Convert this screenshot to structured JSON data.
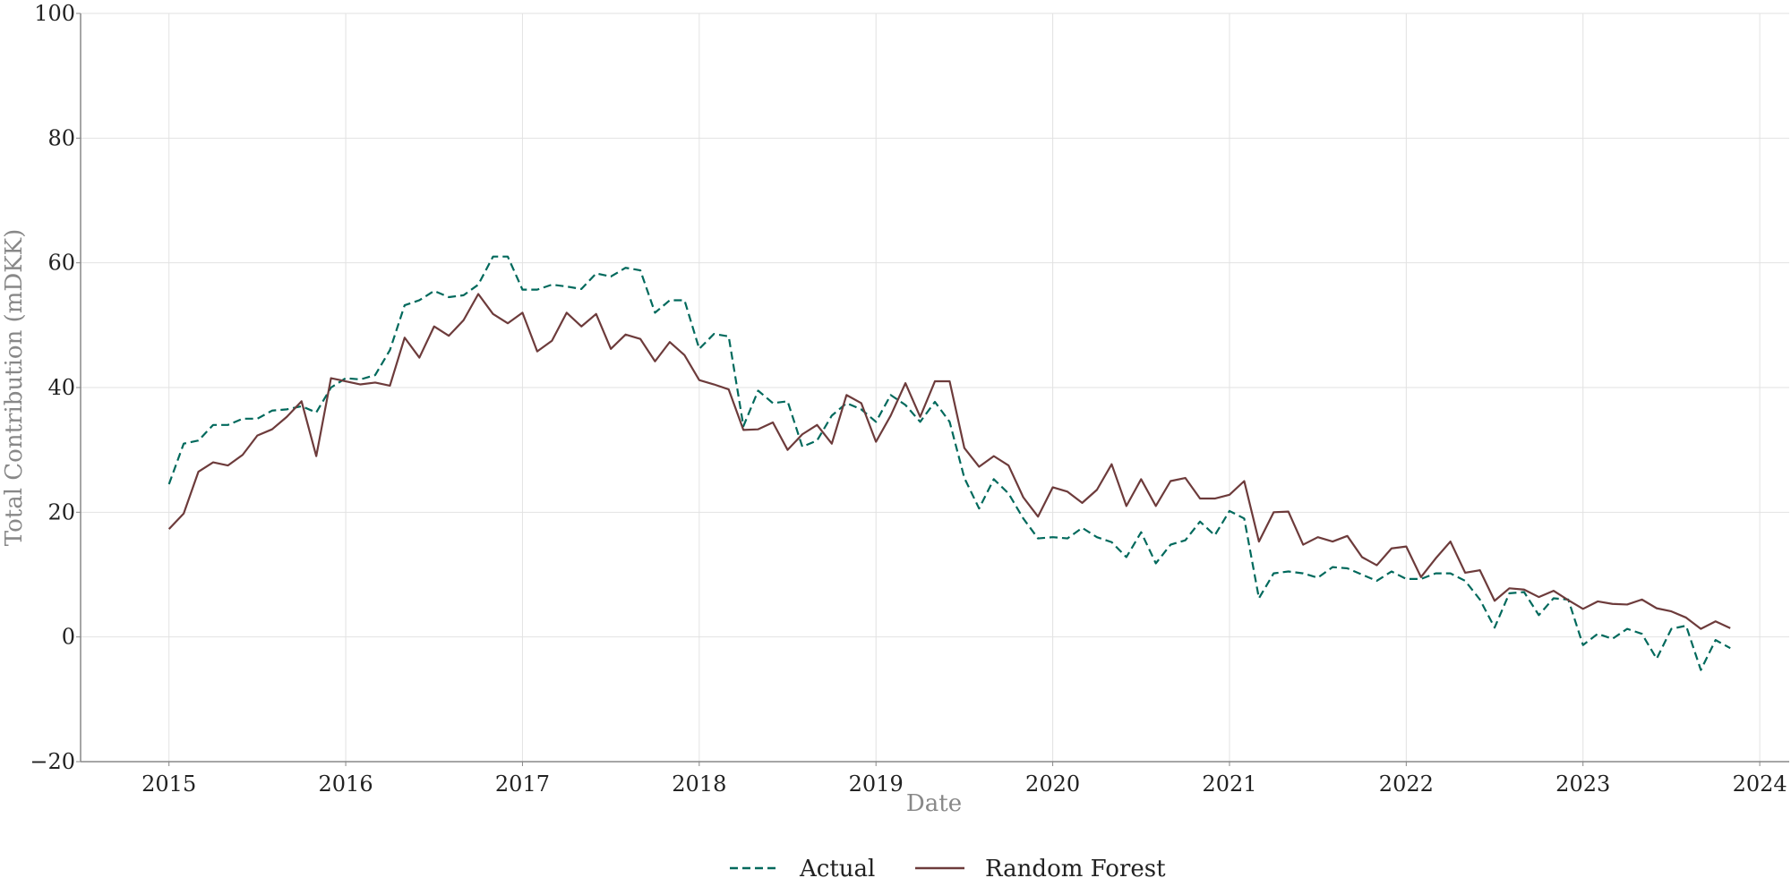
{
  "chart_data": {
    "type": "line",
    "title": "",
    "xlabel": "Date",
    "ylabel": "Total Contribution (mDKK)",
    "xlim": [
      "2014-07-01",
      "2024-03-01"
    ],
    "ylim": [
      -20,
      100
    ],
    "xticks": [
      "2015",
      "2016",
      "2017",
      "2018",
      "2019",
      "2020",
      "2021",
      "2022",
      "2023",
      "2024"
    ],
    "yticks": [
      -20,
      0,
      20,
      40,
      60,
      80,
      100
    ],
    "ytick_labels": [
      "−20",
      "0",
      "20",
      "40",
      "60",
      "80",
      "100"
    ],
    "grid": true,
    "legend_position": "bottom-center",
    "x_start": "2015-01",
    "x_frequency": "monthly",
    "series": [
      {
        "name": "Actual",
        "color": "#00695c",
        "dash": "dashed",
        "values": [
          24.5,
          31,
          31.5,
          34,
          34,
          35,
          35,
          36.3,
          36.5,
          37,
          36,
          40,
          41.5,
          41.3,
          42,
          46,
          53.2,
          54,
          55.5,
          54.5,
          54.8,
          56.5,
          61,
          61,
          55.7,
          55.7,
          56.5,
          56.2,
          55.8,
          58.3,
          57.8,
          59.2,
          58.8,
          52,
          54,
          54,
          46.2,
          48.6,
          48.2,
          33.8,
          39.5,
          37.5,
          37.8,
          30.5,
          31.5,
          35.5,
          37.5,
          36.5,
          34.5,
          38.8,
          37.2,
          34.5,
          37.7,
          34.5,
          25.5,
          20.6,
          25.3,
          23,
          19,
          15.8,
          16,
          15.8,
          17.5,
          16,
          15.2,
          12.8,
          16.8,
          11.8,
          14.8,
          15.5,
          18.5,
          16.3,
          20.2,
          19,
          6.2,
          10.2,
          10.5,
          10.2,
          9.5,
          11.2,
          11,
          10,
          9,
          10.5,
          9.3,
          9.3,
          10.2,
          10.2,
          9,
          6,
          1.5,
          7,
          7.2,
          3.5,
          6.2,
          6,
          -1.3,
          0.5,
          -0.3,
          1.3,
          0.5,
          -3.5,
          1.3,
          1.8,
          -5.3,
          -0.5,
          -1.8
        ]
      },
      {
        "name": "Random Forest",
        "color": "#6d3b3b",
        "dash": "solid",
        "values": [
          17.3,
          19.8,
          26.5,
          28,
          27.5,
          29.2,
          32.3,
          33.3,
          35.3,
          37.8,
          29,
          41.5,
          41,
          40.5,
          40.8,
          40.3,
          48,
          44.8,
          49.8,
          48.3,
          50.8,
          55,
          51.8,
          50.3,
          52,
          45.8,
          47.5,
          52,
          49.8,
          51.8,
          46.2,
          48.5,
          47.8,
          44.2,
          47.3,
          45.2,
          41.2,
          40.5,
          39.7,
          33.2,
          33.3,
          34.4,
          30,
          32.5,
          34,
          31,
          38.8,
          37.5,
          31.3,
          35.5,
          40.7,
          35.3,
          41,
          41,
          30.3,
          27.3,
          29,
          27.5,
          22.4,
          19.3,
          24,
          23.3,
          21.5,
          23.6,
          27.7,
          21,
          25.3,
          21,
          25,
          25.5,
          22.2,
          22.2,
          22.8,
          25,
          15.3,
          20,
          20.1,
          14.8,
          16,
          15.3,
          16.2,
          12.8,
          11.5,
          14.2,
          14.5,
          9.6,
          12.6,
          15.3,
          10.3,
          10.7,
          5.8,
          7.8,
          7.6,
          6.4,
          7.4,
          5.9,
          4.5,
          5.7,
          5.3,
          5.2,
          6,
          4.6,
          4.1,
          3.1,
          1.3,
          2.5,
          1.4
        ]
      }
    ]
  }
}
